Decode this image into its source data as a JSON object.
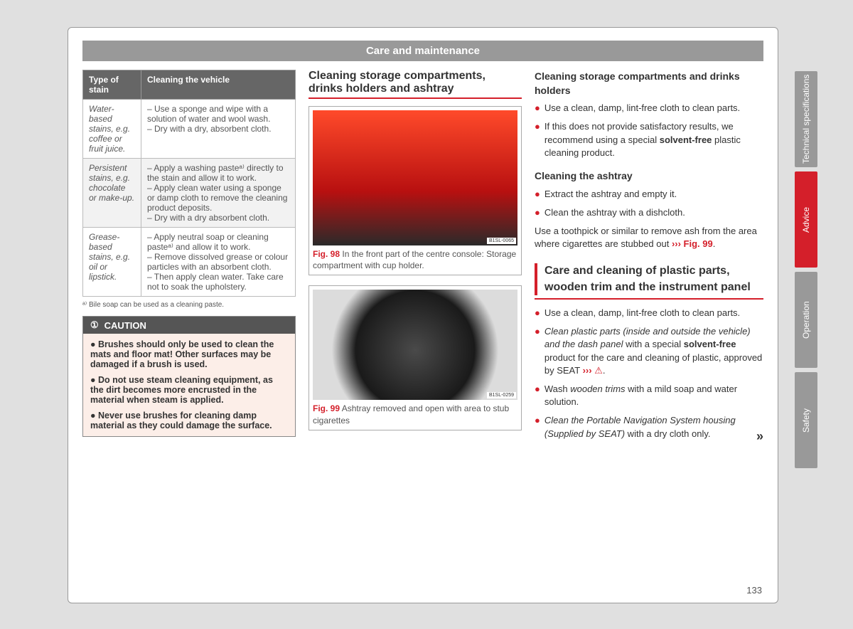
{
  "header": "Care and maintenance",
  "table": {
    "headers": [
      "Type of stain",
      "Cleaning the vehicle"
    ],
    "rows": [
      {
        "type_italic": "Water-based stains",
        "type_rest": ", e.g. coffee or fruit juice.",
        "clean": "– Use a sponge and wipe with a solution of water and wool wash.\n– Dry with a dry, absorbent cloth."
      },
      {
        "type_italic": "Persistent stains",
        "type_rest": ", e.g. chocolate or make-up.",
        "clean": "– Apply a washing pasteᵃ⁾ directly to the stain and allow it to work.\n– Apply clean water using a sponge or damp cloth to remove the cleaning product deposits.\n– Dry with a dry absorbent cloth."
      },
      {
        "type_italic": "Grease-based stains",
        "type_rest": ", e.g. oil or lipstick.",
        "clean": "– Apply neutral soap or cleaning pasteᵃ⁾ and allow it to work.\n– Remove dissolved grease or colour particles with an absorbent cloth.\n– Then apply clean water. Take care not to soak the upholstery."
      }
    ]
  },
  "footnote": "ᵃ⁾  Bile soap can be used as a cleaning paste.",
  "caution": {
    "title": "CAUTION",
    "items": [
      "Brushes should only be used to clean the mats and floor mat! Other surfaces may be damaged if a brush is used.",
      "Do not use steam cleaning equipment, as the dirt becomes more encrusted in the material when steam is applied.",
      "Never use brushes for cleaning damp material as they could damage the surface."
    ]
  },
  "mid": {
    "title": "Cleaning storage compartments, drinks holders and ashtray",
    "fig98": {
      "code": "B1SL-0065",
      "label": "Fig. 98",
      "caption": "In the front part of the centre console: Storage compartment with cup holder."
    },
    "fig99": {
      "code": "B1SL-0259",
      "label": "Fig. 99",
      "caption": "Ashtray removed and open with area to stub cigarettes"
    }
  },
  "right": {
    "sec1_head": "Cleaning storage compartments and drinks holders",
    "sec1_b1": "Use a clean, damp, lint-free cloth to clean parts.",
    "sec1_b2_a": "If this does not provide satisfactory results, we recommend using a special ",
    "sec1_b2_bold": "solvent-free",
    "sec1_b2_b": " plastic cleaning product.",
    "sec2_head": "Cleaning the ashtray",
    "sec2_b1": "Extract the ashtray and empty it.",
    "sec2_b2": "Clean the ashtray with a dishcloth.",
    "sec2_p_a": "Use a toothpick or similar to remove ash from the area where cigarettes are stubbed out ",
    "sec2_link": "››› Fig. 99",
    "sec3_title": "Care and cleaning of plastic parts, wooden trim and the instrument panel",
    "sec3_b1": "Use a clean, damp, lint-free cloth to clean parts.",
    "sec3_b2_i": "Clean plastic parts (inside and outside the vehicle) and the dash panel",
    "sec3_b2_a": " with a special ",
    "sec3_b2_bold": "solvent-free",
    "sec3_b2_b": " product for the care and cleaning of plastic, approved by SEAT ",
    "sec3_b2_link": "›››",
    "sec3_b3_a": "Wash ",
    "sec3_b3_i": "wooden trims",
    "sec3_b3_b": " with a mild soap and water solution.",
    "sec3_b4_i": "Clean the Portable Navigation System housing (Supplied by SEAT)",
    "sec3_b4_a": " with a dry cloth only."
  },
  "tabs": [
    "Technical specifications",
    "Advice",
    "Operation",
    "Safety"
  ],
  "active_tab": 1,
  "page_number": "133"
}
